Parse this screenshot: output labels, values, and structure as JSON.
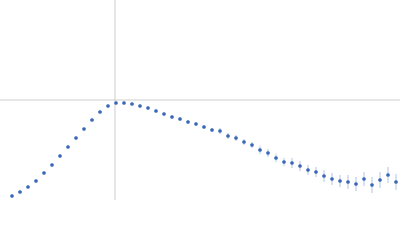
{
  "chart_data": {
    "type": "scatter",
    "x": [
      12,
      20,
      28,
      36,
      44,
      52,
      60,
      68,
      76,
      84,
      92,
      100,
      108,
      116,
      124,
      132,
      140,
      148,
      156,
      164,
      172,
      180,
      188,
      196,
      204,
      212,
      220,
      228,
      236,
      244,
      252,
      260,
      268,
      276,
      284,
      292,
      300,
      308,
      316,
      324,
      332,
      340,
      348,
      356,
      364,
      372,
      380,
      388,
      396
    ],
    "series": [
      {
        "color": "#3a67b8",
        "values": [
          4,
          8,
          13,
          19,
          27,
          35,
          44,
          53,
          62,
          71,
          80,
          88,
          94,
          97,
          97,
          96,
          94,
          92,
          89,
          86,
          83,
          81,
          78,
          76,
          73,
          70,
          69,
          64,
          62,
          58,
          55,
          50,
          47,
          42,
          38,
          37,
          34,
          30,
          28,
          24,
          21,
          19,
          18,
          16,
          21,
          15,
          20,
          25,
          18
        ],
        "errors": [
          1,
          1,
          1,
          1,
          1,
          1,
          1,
          1,
          1,
          1,
          1,
          1,
          1,
          1,
          1,
          1,
          1,
          1,
          1,
          1,
          2,
          2,
          2,
          2,
          2,
          2,
          3,
          3,
          3,
          3,
          3,
          4,
          4,
          4,
          4,
          5,
          5,
          5,
          5,
          6,
          6,
          6,
          7,
          7,
          7,
          8,
          8,
          8,
          8
        ]
      }
    ],
    "xlim": [
      0,
      400
    ],
    "ylim": [
      0,
      200
    ],
    "crosshair": {
      "x": 115,
      "y": 100
    }
  }
}
